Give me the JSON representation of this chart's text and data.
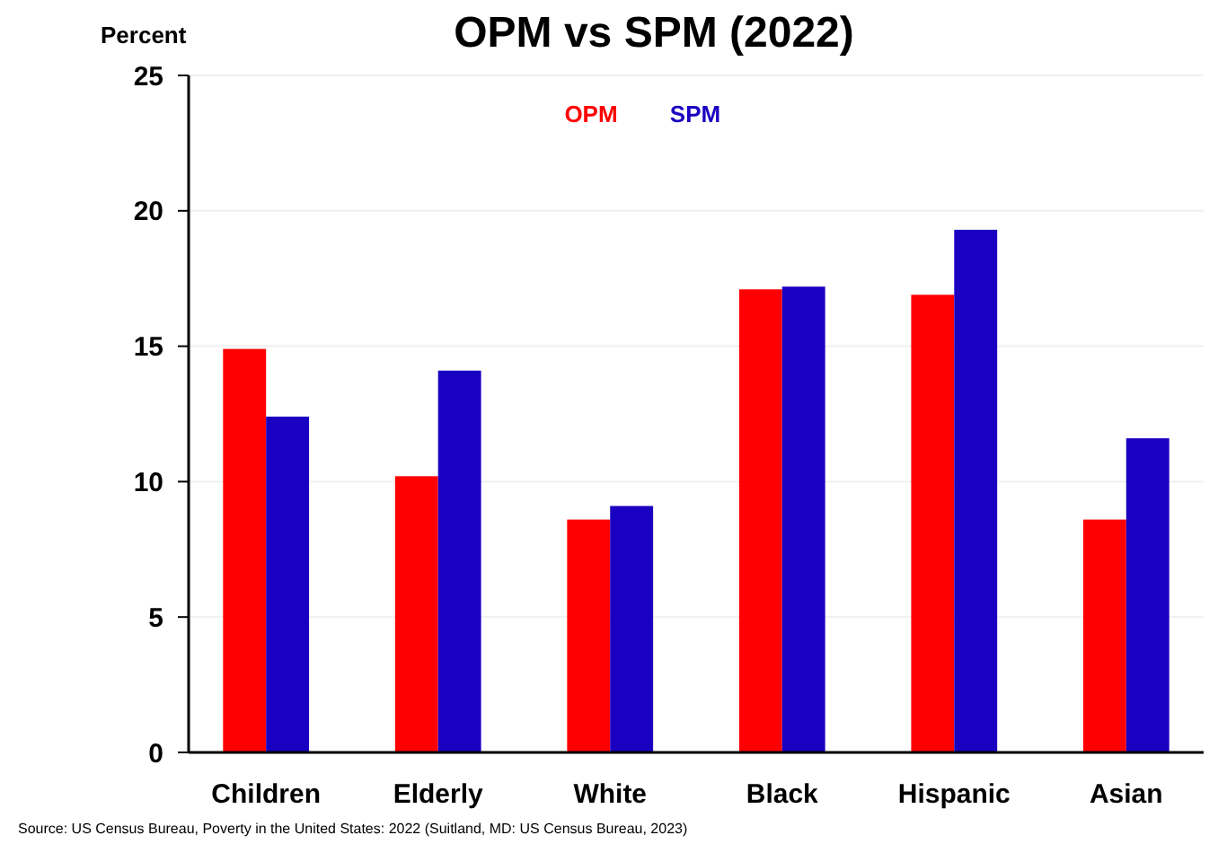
{
  "chart_data": {
    "type": "bar",
    "title": "OPM vs SPM (2022)",
    "ylabel": "Percent",
    "categories": [
      "Children",
      "Elderly",
      "White",
      "Black",
      "Hispanic",
      "Asian"
    ],
    "series": [
      {
        "name": "OPM",
        "color": "#ff0000",
        "values": [
          14.9,
          10.2,
          8.6,
          17.1,
          16.9,
          8.6
        ]
      },
      {
        "name": "SPM",
        "color": "#1a00c0",
        "values": [
          12.4,
          14.1,
          9.1,
          17.2,
          19.3,
          11.6
        ]
      }
    ],
    "ylim": [
      0,
      25
    ],
    "yticks": [
      0,
      5,
      10,
      15,
      20,
      25
    ],
    "grid": "y",
    "legend": "top",
    "annotations": [
      "Source: US Census Bureau, Poverty in the United States: 2022 (Suitland, MD: US Census Bureau, 2023)"
    ]
  }
}
